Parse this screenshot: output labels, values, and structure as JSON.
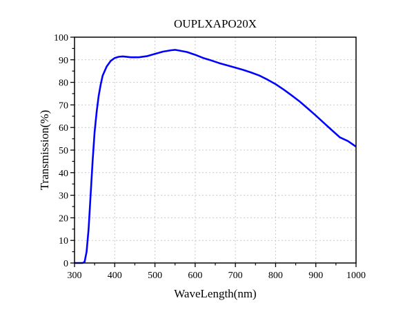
{
  "chart_data": {
    "type": "line",
    "title": "OUPLXAPO20X",
    "xlabel": "WaveLength(nm)",
    "ylabel": "Transmission(%)",
    "xlim": [
      300,
      1000
    ],
    "ylim": [
      0,
      100
    ],
    "xticks": [
      300,
      400,
      500,
      600,
      700,
      800,
      900,
      1000
    ],
    "yticks": [
      0,
      10,
      20,
      30,
      40,
      50,
      60,
      70,
      80,
      90,
      100
    ],
    "grid": true,
    "line_color": "#0000ff",
    "series": [
      {
        "name": "Transmission",
        "x": [
          300,
          320,
          325,
          330,
          335,
          340,
          345,
          350,
          355,
          360,
          365,
          370,
          380,
          390,
          400,
          410,
          420,
          440,
          460,
          480,
          500,
          520,
          540,
          550,
          560,
          580,
          600,
          620,
          640,
          660,
          680,
          700,
          720,
          740,
          760,
          780,
          800,
          820,
          840,
          860,
          880,
          900,
          920,
          940,
          960,
          980,
          1000
        ],
        "y": [
          0,
          0,
          0.5,
          5,
          15,
          30,
          45,
          58,
          67,
          74,
          79,
          83,
          87,
          89.5,
          90.8,
          91.3,
          91.5,
          91.1,
          91.1,
          91.6,
          92.6,
          93.6,
          94.2,
          94.4,
          94.1,
          93.4,
          92.2,
          90.8,
          89.7,
          88.5,
          87.5,
          86.5,
          85.5,
          84.3,
          83,
          81.2,
          79.2,
          76.8,
          74.2,
          71.5,
          68.4,
          65.3,
          62,
          58.8,
          55.6,
          54,
          51.5
        ]
      }
    ]
  }
}
